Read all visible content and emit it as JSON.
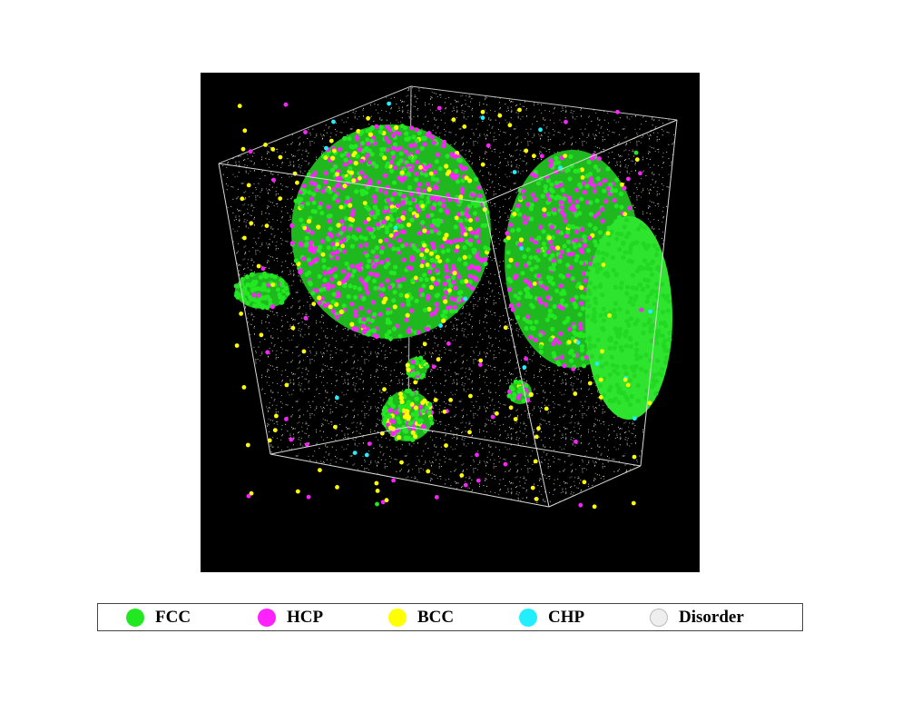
{
  "legend": {
    "items": [
      {
        "key": "fcc",
        "label": "FCC",
        "color": "#22e822"
      },
      {
        "key": "hcp",
        "label": "HCP",
        "color": "#ff22ff"
      },
      {
        "key": "bcc",
        "label": "BCC",
        "color": "#ffff00"
      },
      {
        "key": "chp",
        "label": "CHP",
        "color": "#22eeff"
      },
      {
        "key": "disorder",
        "label": "Disorder",
        "color": "#eeeeee"
      }
    ]
  }
}
